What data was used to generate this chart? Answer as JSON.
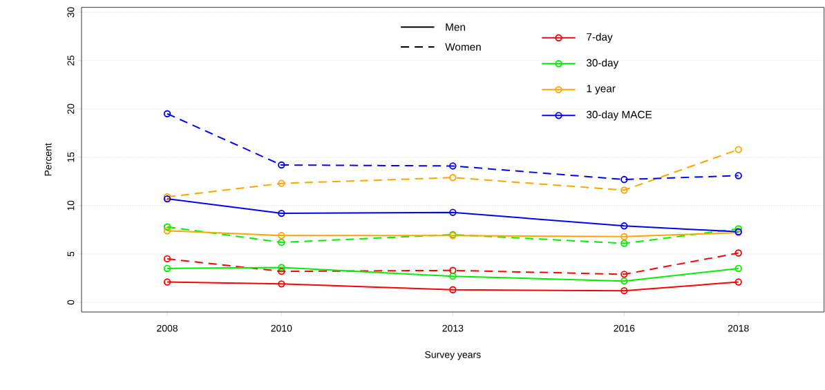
{
  "chart_data": {
    "type": "line",
    "xlabel": "Survey years",
    "ylabel": "Percent",
    "x": [
      2008,
      2010,
      2013,
      2016,
      2018
    ],
    "xlim": [
      2006.5,
      2019.5
    ],
    "xticks": [
      2008,
      2010,
      2013,
      2016,
      2018
    ],
    "ylim": [
      -1,
      30.5
    ],
    "yticks": [
      0,
      5,
      10,
      15,
      20,
      25,
      30
    ],
    "grid": "y",
    "legend": "top right",
    "marker": "circle",
    "series": [
      {
        "name": "Men",
        "color": "#000000",
        "line_style": "solid",
        "marker": "none",
        "values": [
          null,
          null,
          null,
          null,
          null
        ]
      },
      {
        "name": "Women",
        "color": "#000000",
        "line_style": "dashed",
        "marker": "none",
        "values": [
          null,
          null,
          null,
          null,
          null
        ]
      },
      {
        "name": "7-day",
        "color": "#ff0000",
        "line_style": "solid",
        "values": [
          2.1,
          1.9,
          1.3,
          1.2,
          2.1
        ]
      },
      {
        "color": "#ff0000",
        "line_style": "dashed",
        "values": [
          4.5,
          3.2,
          3.3,
          2.9,
          5.1
        ]
      },
      {
        "name": "30-day",
        "color": "#00ee00",
        "line_style": "solid",
        "values": [
          3.5,
          3.6,
          2.7,
          2.2,
          3.5
        ]
      },
      {
        "color": "#00ee00",
        "line_style": "dashed",
        "values": [
          7.8,
          6.2,
          7.0,
          6.1,
          7.6
        ]
      },
      {
        "name": "1 year",
        "color": "#ffa500",
        "line_style": "solid",
        "values": [
          7.4,
          6.9,
          6.9,
          6.8,
          7.2
        ]
      },
      {
        "color": "#ffa500",
        "line_style": "dashed",
        "values": [
          10.9,
          12.3,
          12.9,
          11.6,
          15.8
        ]
      },
      {
        "name": "30-day MACE",
        "color": "#0000ff",
        "line_style": "solid",
        "values": [
          10.7,
          9.2,
          9.3,
          7.9,
          7.3
        ]
      },
      {
        "color": "#0000ff",
        "line_style": "dashed",
        "values": [
          19.5,
          14.2,
          14.1,
          12.7,
          13.1
        ]
      }
    ]
  }
}
